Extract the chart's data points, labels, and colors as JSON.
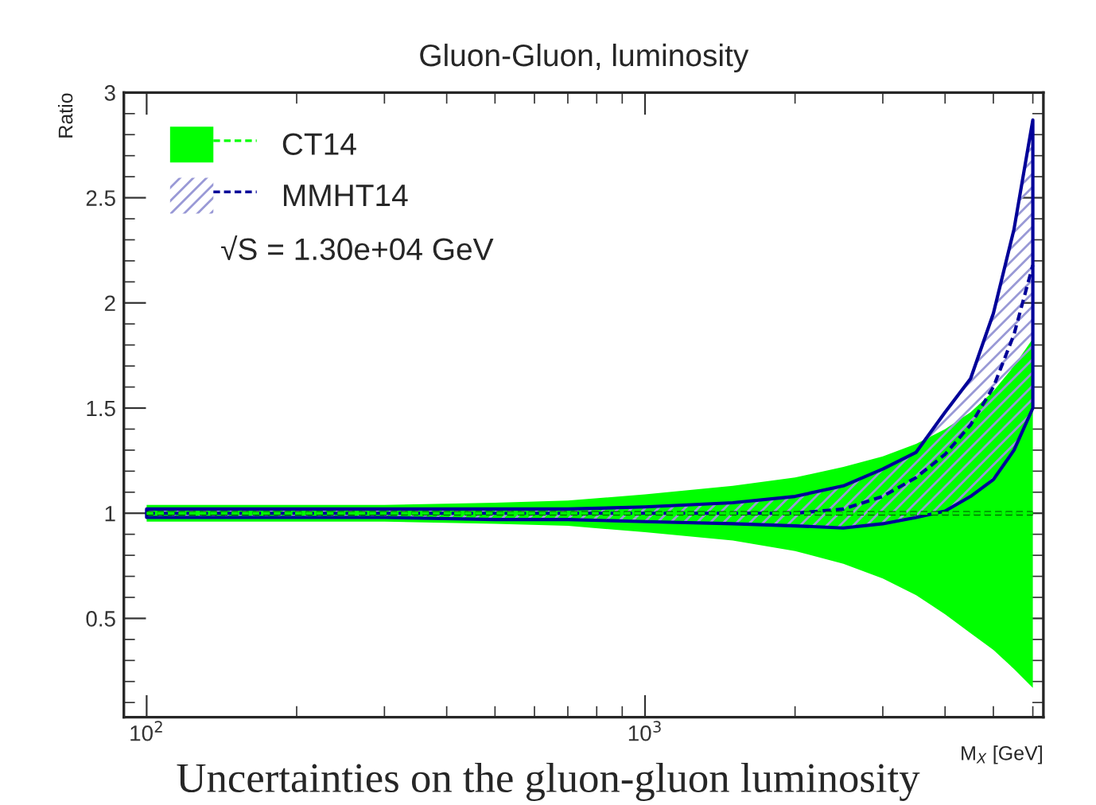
{
  "chart_data": {
    "type": "line",
    "title": "Gluon-Gluon, luminosity",
    "ylabel": "Ratio",
    "xlabel": "M$_{X}$ [GeV]",
    "x": [
      100,
      200,
      300,
      500,
      700,
      1000,
      1500,
      2000,
      2500,
      3000,
      3500,
      4000,
      4500,
      5000,
      5500,
      6000
    ],
    "series": [
      {
        "name": "CT14",
        "color": "#00ff00",
        "line_style": "dashed",
        "values": [
          1,
          1,
          1,
          1,
          1,
          1,
          1,
          1,
          1,
          1,
          1,
          1,
          1,
          1,
          1,
          1
        ],
        "lower": [
          0.96,
          0.96,
          0.96,
          0.95,
          0.94,
          0.91,
          0.87,
          0.82,
          0.76,
          0.69,
          0.61,
          0.52,
          0.43,
          0.35,
          0.26,
          0.17
        ],
        "upper": [
          1.04,
          1.04,
          1.04,
          1.05,
          1.06,
          1.09,
          1.13,
          1.17,
          1.22,
          1.27,
          1.33,
          1.4,
          1.48,
          1.58,
          1.7,
          1.83
        ]
      },
      {
        "name": "MMHT14",
        "color": "#000099",
        "line_style": "dashed",
        "values": [
          1,
          1,
          1,
          1,
          1,
          1,
          1,
          1,
          1.02,
          1.08,
          1.17,
          1.28,
          1.42,
          1.6,
          1.85,
          2.18
        ],
        "lower": [
          0.98,
          0.98,
          0.98,
          0.97,
          0.97,
          0.96,
          0.95,
          0.94,
          0.93,
          0.95,
          0.98,
          1.01,
          1.08,
          1.16,
          1.3,
          1.5
        ],
        "upper": [
          1.02,
          1.02,
          1.02,
          1.02,
          1.02,
          1.03,
          1.05,
          1.08,
          1.13,
          1.21,
          1.29,
          1.48,
          1.64,
          1.95,
          2.35,
          2.87
        ]
      }
    ],
    "log": "x",
    "xlim": [
      90,
      6300
    ],
    "ylim": [
      0.03,
      3
    ],
    "xticks": [
      {
        "value": 100,
        "label": "10$^{2}$"
      },
      {
        "value": 1000,
        "label": "10$^{3}$"
      }
    ],
    "yticks": [
      0.5,
      1,
      1.5,
      2,
      2.5,
      3
    ],
    "legend": "top left",
    "grid": false,
    "annotations": [
      "√S = 1.30e+04 GeV",
      "Uncertainties on the gluon-gluon luminosity"
    ]
  }
}
